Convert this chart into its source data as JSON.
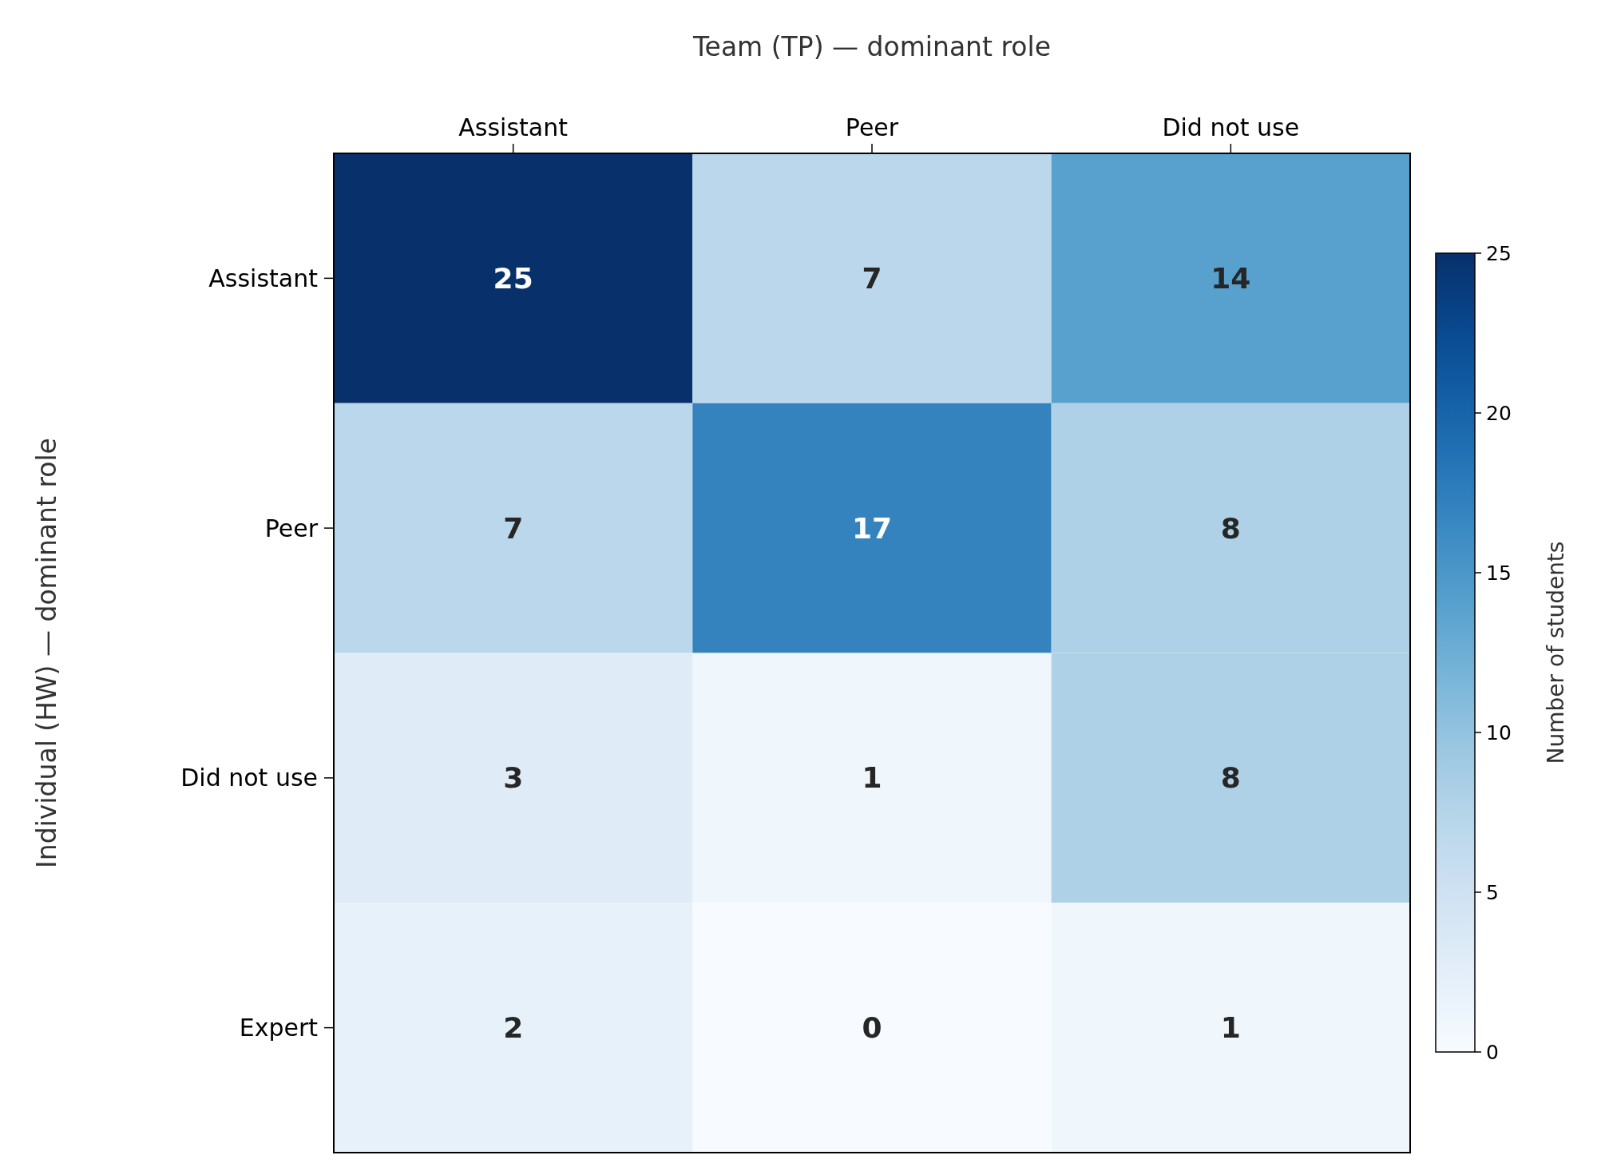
{
  "chart_data": {
    "type": "heatmap",
    "xlabel": "Team (TP) — dominant role",
    "ylabel": "Individual (HW) — dominant role",
    "clabel": "Number of students",
    "categories": [
      "Assistant",
      "Peer",
      "Did not use"
    ],
    "y_categories": [
      "Assistant",
      "Peer",
      "Did not use",
      "Expert"
    ],
    "cells": [
      [
        25,
        7,
        14
      ],
      [
        7,
        17,
        8
      ],
      [
        3,
        1,
        8
      ],
      [
        2,
        0,
        1
      ]
    ],
    "clim": [
      0,
      25
    ],
    "cticks": [
      0,
      5,
      10,
      15,
      20,
      25
    ],
    "data_labels": true
  }
}
